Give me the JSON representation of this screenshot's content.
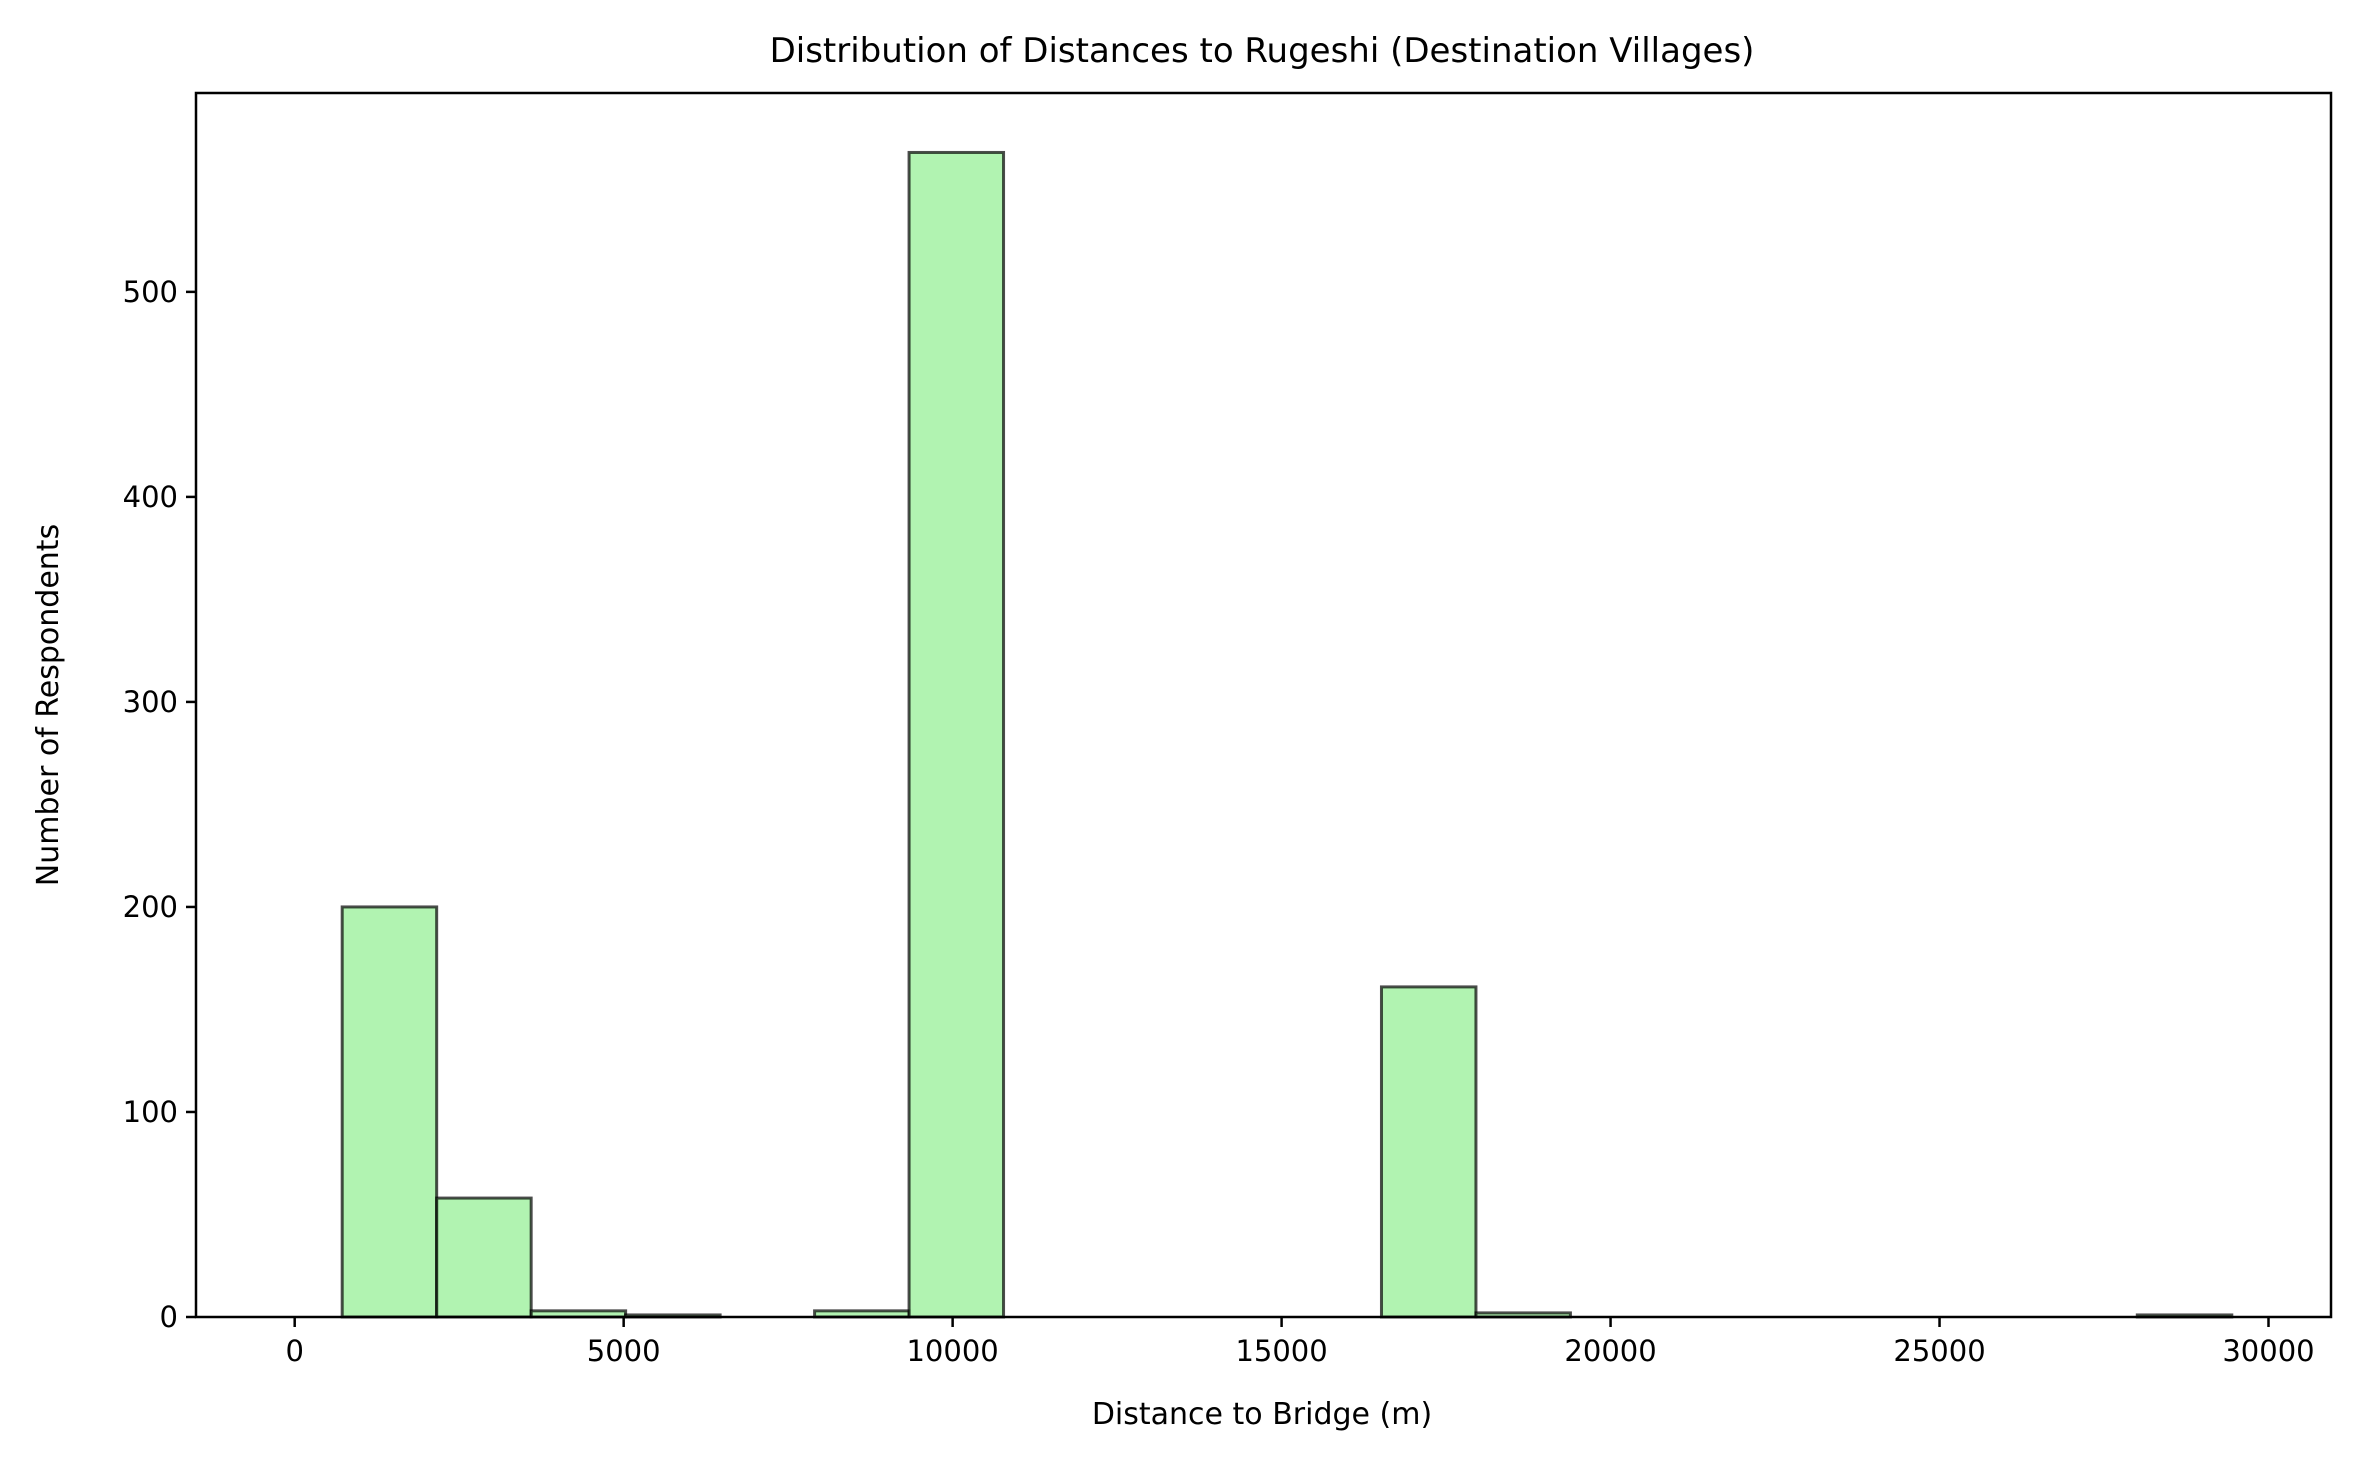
{
  "chart_data": {
    "type": "bar",
    "subtype": "histogram",
    "title": "Distribution of Distances to Rugeshi (Destination Villages)",
    "xlabel": "Distance to Bridge (m)",
    "ylabel": "Number of Respondents",
    "xlim": [
      -1500,
      30950
    ],
    "ylim": [
      0,
      597
    ],
    "xticks": [
      0,
      5000,
      10000,
      15000,
      20000,
      25000,
      30000
    ],
    "yticks": [
      0,
      100,
      200,
      300,
      400,
      500
    ],
    "bar_color": "#90EE90",
    "edge_color": "#000000",
    "bins": [
      {
        "x0": 722,
        "x1": 2158,
        "count": 200
      },
      {
        "x0": 2158,
        "x1": 3594,
        "count": 58
      },
      {
        "x0": 3594,
        "x1": 5030,
        "count": 3
      },
      {
        "x0": 5030,
        "x1": 6466,
        "count": 1
      },
      {
        "x0": 6466,
        "x1": 7902,
        "count": 0
      },
      {
        "x0": 7902,
        "x1": 9338,
        "count": 3
      },
      {
        "x0": 9338,
        "x1": 10774,
        "count": 568
      },
      {
        "x0": 10774,
        "x1": 12210,
        "count": 0
      },
      {
        "x0": 12210,
        "x1": 13646,
        "count": 0
      },
      {
        "x0": 13646,
        "x1": 15082,
        "count": 0
      },
      {
        "x0": 15082,
        "x1": 16518,
        "count": 0
      },
      {
        "x0": 16518,
        "x1": 17954,
        "count": 161
      },
      {
        "x0": 17954,
        "x1": 19390,
        "count": 2
      },
      {
        "x0": 19390,
        "x1": 20826,
        "count": 0
      },
      {
        "x0": 20826,
        "x1": 22262,
        "count": 0
      },
      {
        "x0": 22262,
        "x1": 23698,
        "count": 0
      },
      {
        "x0": 23698,
        "x1": 25134,
        "count": 0
      },
      {
        "x0": 25134,
        "x1": 26570,
        "count": 0
      },
      {
        "x0": 26570,
        "x1": 28006,
        "count": 0
      },
      {
        "x0": 28006,
        "x1": 29442,
        "count": 1
      }
    ]
  }
}
